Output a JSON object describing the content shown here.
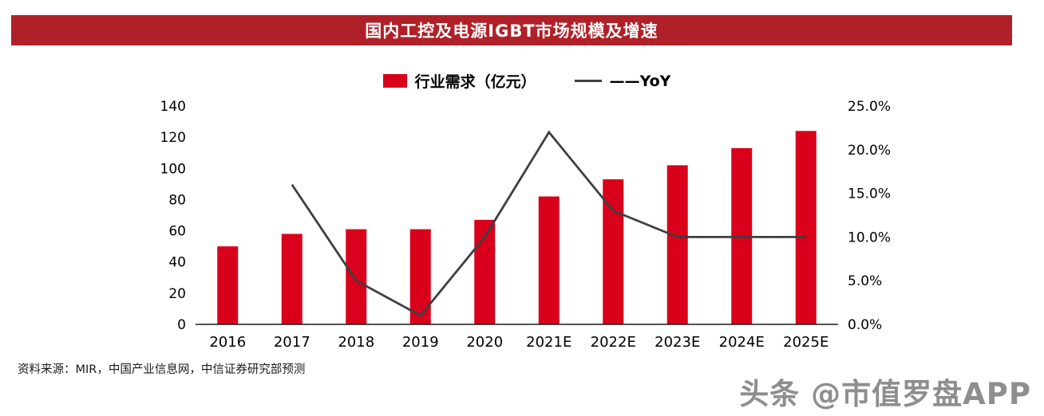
{
  "title": "国内工控及电源IGBT市场规模及增速",
  "legend": {
    "bars_label": "行业需求（亿元）",
    "line_label": "——YoY"
  },
  "source": "资料来源：MIR，中国产业信息网，中信证券研究部预测",
  "watermark": "头条 @市值罗盘APP",
  "colors": {
    "banner": "#b02028",
    "bar": "#d9001b",
    "line": "#3f3f3f",
    "axis": "#1a1a1a",
    "watermark": "#8e8e8e"
  },
  "chart_data": {
    "type": "bar+line",
    "title": "国内工控及电源IGBT市场规模及增速",
    "categories": [
      "2016",
      "2017",
      "2018",
      "2019",
      "2020",
      "2021E",
      "2022E",
      "2023E",
      "2024E",
      "2025E"
    ],
    "series": [
      {
        "name": "行业需求（亿元）",
        "type": "bar",
        "axis": "left",
        "values": [
          50,
          58,
          61,
          61,
          67,
          82,
          93,
          102,
          113,
          124
        ]
      },
      {
        "name": "YoY",
        "type": "line",
        "axis": "right",
        "values": [
          null,
          16.0,
          5.0,
          1.0,
          10.0,
          22.0,
          13.0,
          10.0,
          10.0,
          10.0
        ]
      }
    ],
    "left_axis": {
      "min": 0,
      "max": 140,
      "step": 20,
      "ticks": [
        "0",
        "20",
        "40",
        "60",
        "80",
        "100",
        "120",
        "140"
      ]
    },
    "right_axis": {
      "min": 0,
      "max": 25,
      "step": 5,
      "ticks": [
        "0.0%",
        "5.0%",
        "10.0%",
        "15.0%",
        "20.0%",
        "25.0%"
      ]
    },
    "grid": false,
    "legend_position": "top"
  }
}
